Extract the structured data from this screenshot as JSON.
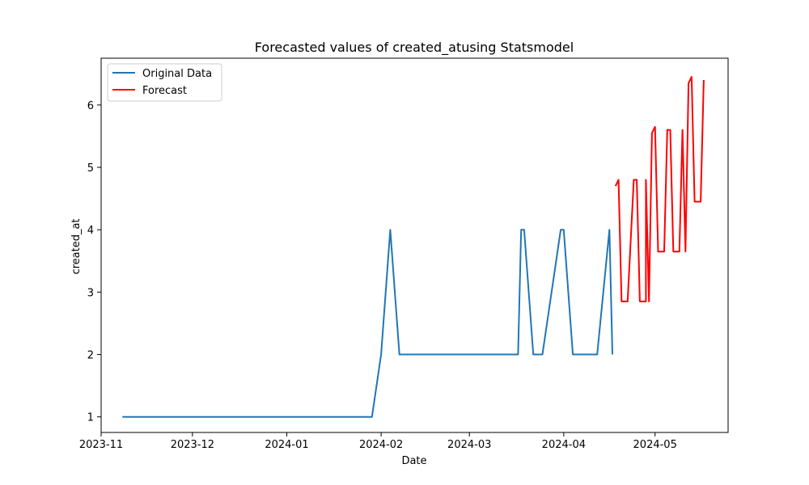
{
  "chart_data": {
    "type": "line",
    "title": "Forecasted values of created_atusing Statsmodel",
    "xlabel": "Date",
    "ylabel": "created_at",
    "x_axis_type": "date",
    "xlim": [
      "2023-11-01",
      "2024-05-25"
    ],
    "ylim": [
      0.75,
      6.75
    ],
    "x_ticks": [
      "2023-11-01",
      "2023-12-01",
      "2024-01-01",
      "2024-02-01",
      "2024-03-01",
      "2024-04-01",
      "2024-05-01"
    ],
    "x_tick_labels": [
      "2023-11",
      "2023-12",
      "2024-01",
      "2024-02",
      "2024-03",
      "2024-04",
      "2024-05"
    ],
    "y_ticks": [
      1,
      2,
      3,
      4,
      5,
      6
    ],
    "y_tick_labels": [
      "1",
      "2",
      "3",
      "4",
      "5",
      "6"
    ],
    "grid": false,
    "legend_position": "top-left",
    "series": [
      {
        "name": "Original Data",
        "color": "#1f77b4",
        "points": [
          [
            "2023-11-08",
            1
          ],
          [
            "2024-01-29",
            1
          ],
          [
            "2024-02-01",
            2
          ],
          [
            "2024-02-04",
            4
          ],
          [
            "2024-02-07",
            2
          ],
          [
            "2024-03-17",
            2
          ],
          [
            "2024-03-18",
            4
          ],
          [
            "2024-03-19",
            4
          ],
          [
            "2024-03-22",
            2
          ],
          [
            "2024-03-25",
            2
          ],
          [
            "2024-03-31",
            4
          ],
          [
            "2024-04-01",
            4
          ],
          [
            "2024-04-04",
            2
          ],
          [
            "2024-04-12",
            2
          ],
          [
            "2024-04-16",
            4
          ],
          [
            "2024-04-17",
            2
          ]
        ]
      },
      {
        "name": "Forecast",
        "color": "#ff0000",
        "points": [
          [
            "2024-04-18",
            4.7
          ],
          [
            "2024-04-19",
            4.8
          ],
          [
            "2024-04-20",
            2.85
          ],
          [
            "2024-04-22",
            2.85
          ],
          [
            "2024-04-24",
            4.8
          ],
          [
            "2024-04-25",
            4.8
          ],
          [
            "2024-04-26",
            2.85
          ],
          [
            "2024-04-28",
            2.85
          ],
          [
            "2024-04-28",
            4.8
          ],
          [
            "2024-04-29",
            2.85
          ],
          [
            "2024-04-30",
            5.55
          ],
          [
            "2024-05-01",
            5.65
          ],
          [
            "2024-05-02",
            3.65
          ],
          [
            "2024-05-04",
            3.65
          ],
          [
            "2024-05-05",
            5.6
          ],
          [
            "2024-05-06",
            5.6
          ],
          [
            "2024-05-07",
            3.65
          ],
          [
            "2024-05-09",
            3.65
          ],
          [
            "2024-05-10",
            5.6
          ],
          [
            "2024-05-11",
            3.65
          ],
          [
            "2024-05-12",
            6.35
          ],
          [
            "2024-05-13",
            6.45
          ],
          [
            "2024-05-14",
            4.45
          ],
          [
            "2024-05-16",
            4.45
          ],
          [
            "2024-05-17",
            6.4
          ]
        ]
      }
    ]
  }
}
